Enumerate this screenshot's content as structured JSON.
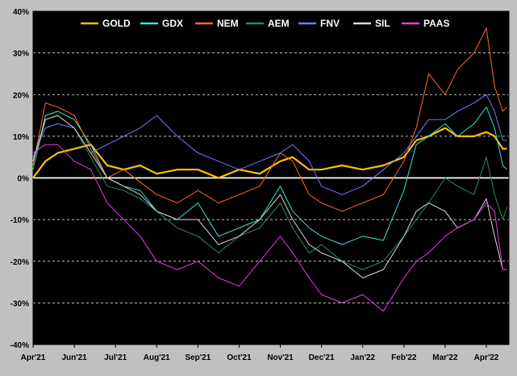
{
  "chart_data": {
    "type": "line",
    "title": "",
    "xlabel": "",
    "ylabel": "",
    "ylim": [
      -40,
      40
    ],
    "y_ticks": [
      -40,
      -30,
      -20,
      -10,
      0,
      10,
      20,
      30,
      40
    ],
    "y_tick_labels": [
      "-40%",
      "-30%",
      "-20%",
      "-10%",
      "0%",
      "10%",
      "20%",
      "30%",
      "40%"
    ],
    "x_tick_labels": [
      "Apr'21",
      "Jun'21",
      "Jul'21",
      "Aug'21",
      "Sep'21",
      "Oct'21",
      "Nov'21",
      "Dec'21",
      "Jan'22",
      "Feb'22",
      "Mar'22",
      "Apr'22"
    ],
    "x_tick_positions": [
      0,
      1,
      2,
      3,
      4,
      5,
      6,
      7,
      8,
      9,
      10,
      11
    ],
    "x_max": 11.6,
    "grid": "horizontal-dashed",
    "background": "#000000",
    "legend_position": "top",
    "series": [
      {
        "name": "GOLD",
        "color": "#ffc000",
        "width": 2.2,
        "x": [
          0,
          0.3,
          0.6,
          1,
          1.4,
          1.8,
          2.2,
          2.6,
          3,
          3.5,
          4,
          4.5,
          5,
          5.5,
          6,
          6.3,
          6.7,
          7,
          7.5,
          8,
          8.5,
          9,
          9.3,
          9.6,
          10,
          10.3,
          10.7,
          11,
          11.2,
          11.4,
          11.5
        ],
        "values": [
          0,
          4,
          6,
          7,
          8,
          3,
          2,
          3,
          1,
          2,
          2,
          0,
          2,
          1,
          4,
          5,
          2,
          2,
          3,
          2,
          3,
          5,
          9,
          10,
          12,
          10,
          10,
          11,
          10,
          7,
          7
        ]
      },
      {
        "name": "GDX",
        "color": "#40e0d0",
        "width": 1,
        "x": [
          0,
          0.3,
          0.6,
          1,
          1.4,
          1.8,
          2.2,
          2.6,
          3,
          3.5,
          4,
          4.5,
          5,
          5.5,
          6,
          6.3,
          6.7,
          7,
          7.5,
          8,
          8.5,
          9,
          9.3,
          9.6,
          10,
          10.3,
          10.7,
          11,
          11.2,
          11.4,
          11.5
        ],
        "values": [
          2,
          15,
          16,
          14,
          8,
          0,
          -2,
          -3,
          -8,
          -10,
          -6,
          -14,
          -12,
          -10,
          -2,
          -8,
          -12,
          -14,
          -16,
          -14,
          -15,
          -3,
          8,
          10,
          13,
          10,
          13,
          17,
          12,
          3,
          2
        ]
      },
      {
        "name": "NEM",
        "color": "#ff6a20",
        "width": 1,
        "x": [
          0,
          0.3,
          0.6,
          1,
          1.4,
          1.8,
          2.2,
          2.6,
          3,
          3.5,
          4,
          4.5,
          5,
          5.5,
          6,
          6.3,
          6.7,
          7,
          7.5,
          8,
          8.5,
          9,
          9.3,
          9.6,
          10,
          10.3,
          10.7,
          11,
          11.2,
          11.4,
          11.5
        ],
        "values": [
          3,
          18,
          17,
          15,
          7,
          0,
          2,
          -1,
          -4,
          -6,
          -3,
          -6,
          -4,
          -2,
          6,
          4,
          -4,
          -6,
          -8,
          -6,
          -4,
          4,
          12,
          25,
          20,
          26,
          30,
          36,
          22,
          16,
          17
        ]
      },
      {
        "name": "AEM",
        "color": "#2e8b57",
        "width": 1,
        "x": [
          0,
          0.3,
          0.6,
          1,
          1.4,
          1.8,
          2.2,
          2.6,
          3,
          3.5,
          4,
          4.5,
          5,
          5.5,
          6,
          6.3,
          6.7,
          7,
          7.5,
          8,
          8.5,
          9,
          9.3,
          9.6,
          10,
          10.3,
          10.7,
          11,
          11.2,
          11.4,
          11.5
        ],
        "values": [
          2,
          14,
          15,
          12,
          5,
          -2,
          -3,
          -5,
          -8,
          -12,
          -14,
          -18,
          -14,
          -12,
          -6,
          -12,
          -18,
          -16,
          -20,
          -22,
          -20,
          -14,
          -10,
          -6,
          0,
          -2,
          -4,
          5,
          -4,
          -10,
          -7
        ]
      },
      {
        "name": "FNV",
        "color": "#6f7dff",
        "width": 1,
        "x": [
          0,
          0.3,
          0.6,
          1,
          1.4,
          1.8,
          2.2,
          2.6,
          3,
          3.5,
          4,
          4.5,
          5,
          5.5,
          6,
          6.3,
          6.7,
          7,
          7.5,
          8,
          8.5,
          9,
          9.3,
          9.6,
          10,
          10.3,
          10.7,
          11,
          11.2,
          11.4,
          11.5
        ],
        "values": [
          5,
          12,
          13,
          12,
          6,
          8,
          10,
          12,
          15,
          10,
          6,
          4,
          2,
          4,
          6,
          8,
          4,
          -2,
          -4,
          -2,
          2,
          6,
          10,
          14,
          14,
          16,
          18,
          20,
          16,
          9,
          9
        ]
      },
      {
        "name": "SIL",
        "color": "#d8d8d8",
        "width": 1,
        "x": [
          0,
          0.3,
          0.6,
          1,
          1.4,
          1.8,
          2.2,
          2.6,
          3,
          3.5,
          4,
          4.5,
          5,
          5.5,
          6,
          6.3,
          6.7,
          7,
          7.5,
          8,
          8.5,
          9,
          9.3,
          9.6,
          10,
          10.3,
          10.7,
          11,
          11.2,
          11.4,
          11.5
        ],
        "values": [
          4,
          14,
          15,
          12,
          6,
          0,
          -2,
          -4,
          -8,
          -10,
          -10,
          -16,
          -14,
          -10,
          -4,
          -10,
          -16,
          -18,
          -20,
          -24,
          -22,
          -14,
          -8,
          -6,
          -8,
          -12,
          -10,
          -5,
          -14,
          -22,
          -22
        ]
      },
      {
        "name": "PAAS",
        "color": "#e040e0",
        "width": 1,
        "x": [
          0,
          0.3,
          0.6,
          1,
          1.4,
          1.8,
          2.2,
          2.6,
          3,
          3.5,
          4,
          4.5,
          5,
          5.5,
          6,
          6.3,
          6.7,
          7,
          7.5,
          8,
          8.5,
          9,
          9.3,
          9.6,
          10,
          10.3,
          10.7,
          11,
          11.2,
          11.4,
          11.5
        ],
        "values": [
          6,
          8,
          8,
          4,
          2,
          -6,
          -10,
          -14,
          -20,
          -22,
          -20,
          -24,
          -26,
          -20,
          -14,
          -18,
          -24,
          -28,
          -30,
          -28,
          -32,
          -24,
          -20,
          -18,
          -14,
          -12,
          -10,
          -6,
          -8,
          -22,
          -22
        ]
      }
    ]
  }
}
